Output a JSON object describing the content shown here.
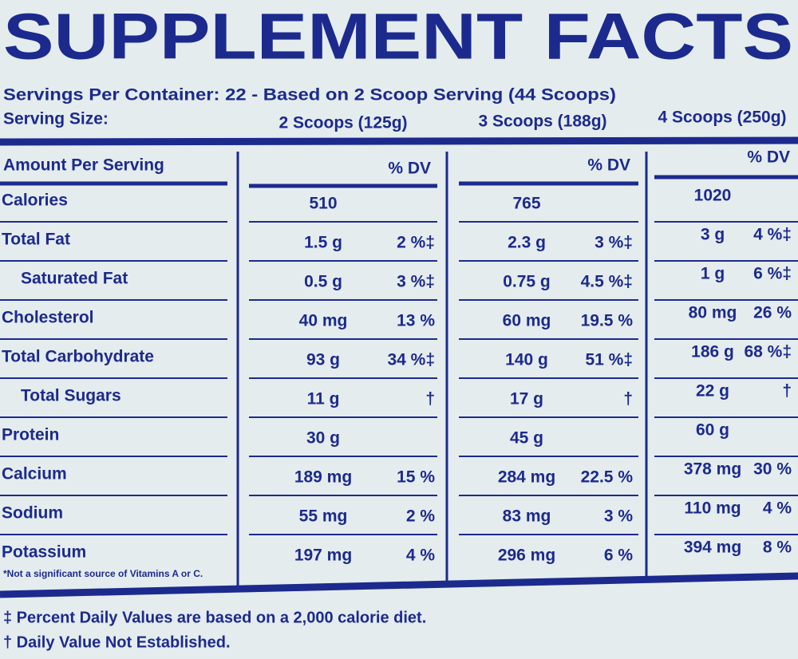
{
  "title": "SUPPLEMENT FACTS",
  "servings_per_container": "Servings Per Container: 22 - Based on 2 Scoop Serving (44 Scoops)",
  "serving_size_label": "Serving Size:",
  "serving_sizes": [
    "2 Scoops (125g)",
    "3 Scoops (188g)",
    "4 Scoops (250g)"
  ],
  "table": {
    "header": [
      "Amount Per Serving",
      "% DV",
      "% DV",
      "% DV"
    ],
    "rows": [
      [
        "Calories",
        "510",
        null,
        "765",
        null,
        "1020",
        null
      ],
      [
        "Total Fat",
        "1.5 g",
        "2 %‡",
        "2.3 g",
        "3 %‡",
        "3 g",
        "4 %‡"
      ],
      [
        "Saturated Fat",
        "0.5 g",
        "3 %‡",
        "0.75 g",
        "4.5 %‡",
        "1 g",
        "6 %‡"
      ],
      [
        "Cholesterol",
        "40 mg",
        "13 %",
        "60 mg",
        "19.5 %",
        "80 mg",
        "26 %"
      ],
      [
        "Total Carbohydrate",
        "93 g",
        "34 %‡",
        "140 g",
        "51 %‡",
        "186 g",
        "68 %‡"
      ],
      [
        "Total Sugars",
        "11 g",
        "†",
        "17 g",
        "†",
        "22 g",
        "†"
      ],
      [
        "Protein",
        "30 g",
        null,
        "45 g",
        null,
        "60 g",
        null
      ],
      [
        "Calcium",
        "189 mg",
        "15 %",
        "284 mg",
        "22.5 %",
        "378 mg",
        "30 %"
      ],
      [
        "Sodium",
        "55 mg",
        "2 %",
        "83 mg",
        "3 %",
        "110 mg",
        "4 %"
      ],
      [
        "Potassium",
        "197 mg",
        "4 %",
        "296 mg",
        "6 %",
        "394 mg",
        "8 %"
      ]
    ]
  },
  "note": "*Not a significant source of Vitamins A or C.",
  "footnotes": [
    "‡ Percent Daily Values are based on a 2,000 calorie diet.",
    "† Daily Value Not Established."
  ]
}
